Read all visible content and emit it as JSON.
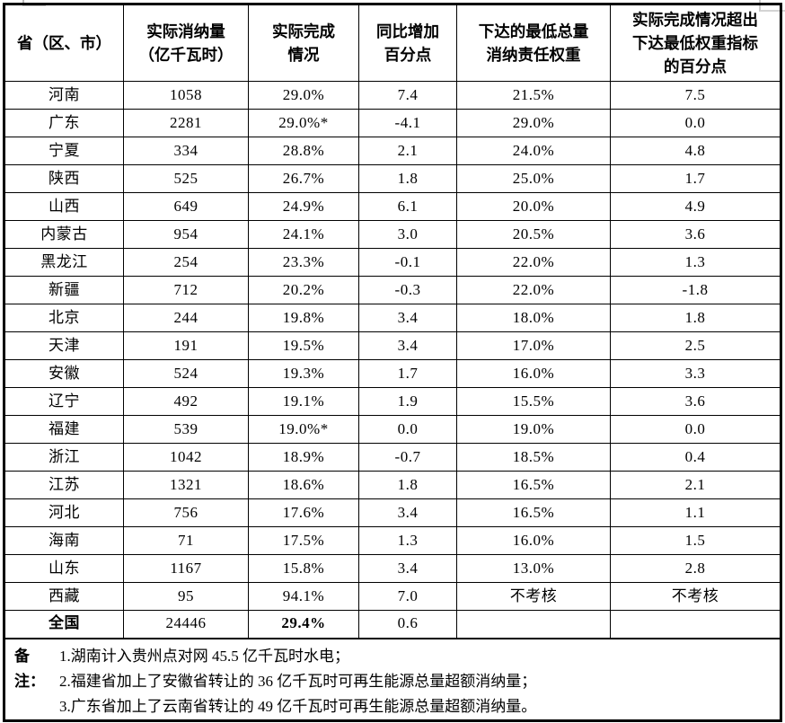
{
  "page": {
    "background": "#ffffff",
    "border_color": "#000000",
    "text_color": "#000000"
  },
  "table": {
    "columns": [
      {
        "label": "省（区、市）"
      },
      {
        "label": "实际消纳量\n（亿千瓦时）"
      },
      {
        "label": "实际完成\n情况"
      },
      {
        "label": "同比增加\n百分点"
      },
      {
        "label": "下达的最低总量\n消纳责任权重"
      },
      {
        "label": "实际完成情况超出\n下达最低权重指标\n的百分点"
      }
    ],
    "rows": [
      {
        "province": "河南",
        "consumption": "1058",
        "completion": "29.0%",
        "yoy_change": "7.4",
        "min_weight": "21.5%",
        "excess": "7.5"
      },
      {
        "province": "广东",
        "consumption": "2281",
        "completion": "29.0%*",
        "yoy_change": "-4.1",
        "min_weight": "29.0%",
        "excess": "0.0"
      },
      {
        "province": "宁夏",
        "consumption": "334",
        "completion": "28.8%",
        "yoy_change": "2.1",
        "min_weight": "24.0%",
        "excess": "4.8"
      },
      {
        "province": "陕西",
        "consumption": "525",
        "completion": "26.7%",
        "yoy_change": "1.8",
        "min_weight": "25.0%",
        "excess": "1.7"
      },
      {
        "province": "山西",
        "consumption": "649",
        "completion": "24.9%",
        "yoy_change": "6.1",
        "min_weight": "20.0%",
        "excess": "4.9"
      },
      {
        "province": "内蒙古",
        "consumption": "954",
        "completion": "24.1%",
        "yoy_change": "3.0",
        "min_weight": "20.5%",
        "excess": "3.6"
      },
      {
        "province": "黑龙江",
        "consumption": "254",
        "completion": "23.3%",
        "yoy_change": "-0.1",
        "min_weight": "22.0%",
        "excess": "1.3"
      },
      {
        "province": "新疆",
        "consumption": "712",
        "completion": "20.2%",
        "yoy_change": "-0.3",
        "min_weight": "22.0%",
        "excess": "-1.8"
      },
      {
        "province": "北京",
        "consumption": "244",
        "completion": "19.8%",
        "yoy_change": "3.4",
        "min_weight": "18.0%",
        "excess": "1.8"
      },
      {
        "province": "天津",
        "consumption": "191",
        "completion": "19.5%",
        "yoy_change": "3.4",
        "min_weight": "17.0%",
        "excess": "2.5"
      },
      {
        "province": "安徽",
        "consumption": "524",
        "completion": "19.3%",
        "yoy_change": "1.7",
        "min_weight": "16.0%",
        "excess": "3.3"
      },
      {
        "province": "辽宁",
        "consumption": "492",
        "completion": "19.1%",
        "yoy_change": "1.9",
        "min_weight": "15.5%",
        "excess": "3.6"
      },
      {
        "province": "福建",
        "consumption": "539",
        "completion": "19.0%*",
        "yoy_change": "0.0",
        "min_weight": "19.0%",
        "excess": "0.0"
      },
      {
        "province": "浙江",
        "consumption": "1042",
        "completion": "18.9%",
        "yoy_change": "-0.7",
        "min_weight": "18.5%",
        "excess": "0.4"
      },
      {
        "province": "江苏",
        "consumption": "1321",
        "completion": "18.6%",
        "yoy_change": "1.8",
        "min_weight": "16.5%",
        "excess": "2.1"
      },
      {
        "province": "河北",
        "consumption": "756",
        "completion": "17.6%",
        "yoy_change": "3.4",
        "min_weight": "16.5%",
        "excess": "1.1"
      },
      {
        "province": "海南",
        "consumption": "71",
        "completion": "17.5%",
        "yoy_change": "1.3",
        "min_weight": "16.0%",
        "excess": "1.5"
      },
      {
        "province": "山东",
        "consumption": "1167",
        "completion": "15.8%",
        "yoy_change": "3.4",
        "min_weight": "13.0%",
        "excess": "2.8"
      },
      {
        "province": "西藏",
        "consumption": "95",
        "completion": "94.1%",
        "yoy_change": "7.0",
        "min_weight": "不考核",
        "excess": "不考核"
      },
      {
        "province": "全国",
        "consumption": "24446",
        "completion": "29.4%",
        "yoy_change": "0.6",
        "min_weight": "",
        "excess": "",
        "is_total": true
      }
    ],
    "notes": {
      "label": "备注：",
      "items": [
        "1.湖南计入贵州点对网 45.5 亿千瓦时水电；",
        "2.福建省加上了安徽省转让的 36 亿千瓦时可再生能源总量超额消纳量；",
        "3.广东省加上了云南省转让的 49 亿千瓦时可再生能源总量超额消纳量。"
      ]
    }
  }
}
